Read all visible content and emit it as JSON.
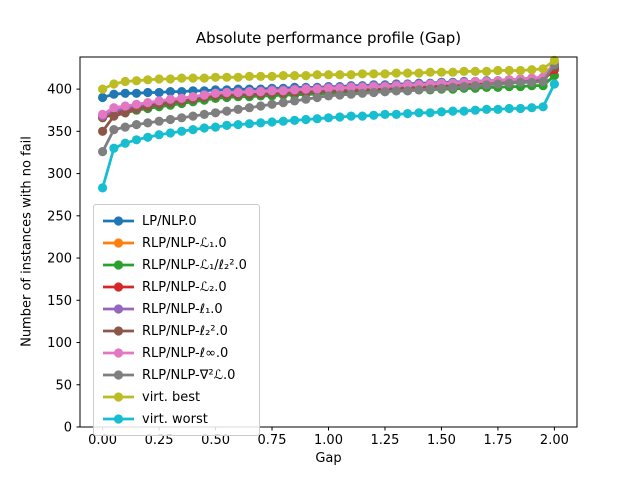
{
  "window": {
    "background": "#ffffff"
  },
  "chart_data": {
    "type": "line",
    "title": "Absolute performance profile (Gap)",
    "xlabel": "Gap",
    "ylabel": "Number of instances with no fail",
    "xlim": [
      -0.1,
      2.1
    ],
    "ylim": [
      0,
      438
    ],
    "xticks": [
      0.0,
      0.25,
      0.5,
      0.75,
      1.0,
      1.25,
      1.5,
      1.75,
      2.0
    ],
    "yticks": [
      0,
      50,
      100,
      150,
      200,
      250,
      300,
      350,
      400
    ],
    "grid": false,
    "legend_position": "inside-left-bottom",
    "marker": "o",
    "text_color": "#000000",
    "spine_color": "#000000",
    "x": [
      0.0,
      0.05,
      0.1,
      0.15,
      0.2,
      0.25,
      0.3,
      0.35,
      0.4,
      0.45,
      0.5,
      0.55,
      0.6,
      0.65,
      0.7,
      0.75,
      0.8,
      0.85,
      0.9,
      0.95,
      1.0,
      1.05,
      1.1,
      1.15,
      1.2,
      1.25,
      1.3,
      1.35,
      1.4,
      1.45,
      1.5,
      1.55,
      1.6,
      1.65,
      1.7,
      1.75,
      1.8,
      1.85,
      1.9,
      1.95,
      2.0
    ],
    "series": [
      {
        "name": "LP/NLP.0",
        "color": "#1f77b4",
        "values": [
          390,
          394,
          395,
          395,
          396,
          396,
          397,
          397,
          398,
          398,
          399,
          399,
          400,
          400,
          400,
          401,
          401,
          402,
          402,
          402,
          403,
          403,
          404,
          404,
          405,
          405,
          406,
          406,
          407,
          407,
          408,
          408,
          409,
          409,
          410,
          410,
          411,
          411,
          411,
          412,
          428
        ]
      },
      {
        "name": "RLP/NLP-ℒ₁.0",
        "color": "#ff7f0e",
        "values": [
          367,
          372,
          375,
          378,
          381,
          383,
          385,
          387,
          389,
          391,
          393,
          394,
          394,
          395,
          395,
          396,
          396,
          397,
          397,
          398,
          398,
          399,
          399,
          400,
          400,
          401,
          401,
          402,
          402,
          403,
          404,
          404,
          405,
          406,
          406,
          407,
          408,
          408,
          409,
          410,
          424
        ]
      },
      {
        "name": "RLP/NLP-ℒ₁/ℓ₂².0",
        "color": "#2ca02c",
        "values": [
          366,
          370,
          372,
          375,
          377,
          379,
          381,
          383,
          385,
          387,
          389,
          390,
          391,
          391,
          392,
          392,
          393,
          393,
          394,
          394,
          395,
          395,
          396,
          396,
          397,
          397,
          398,
          398,
          399,
          399,
          400,
          400,
          401,
          401,
          402,
          402,
          403,
          403,
          404,
          404,
          416
        ]
      },
      {
        "name": "RLP/NLP-ℒ₂.0",
        "color": "#d62728",
        "values": [
          367,
          371,
          374,
          377,
          380,
          382,
          384,
          386,
          388,
          390,
          392,
          393,
          394,
          394,
          395,
          395,
          396,
          396,
          397,
          397,
          398,
          398,
          399,
          399,
          400,
          400,
          401,
          402,
          402,
          403,
          404,
          404,
          405,
          406,
          407,
          408,
          409,
          410,
          410,
          411,
          423
        ]
      },
      {
        "name": "RLP/NLP-ℓ₁.0",
        "color": "#9467bd",
        "values": [
          368,
          374,
          377,
          380,
          383,
          385,
          387,
          389,
          391,
          393,
          395,
          396,
          397,
          397,
          398,
          399,
          399,
          400,
          401,
          401,
          402,
          402,
          403,
          403,
          404,
          404,
          405,
          405,
          406,
          406,
          407,
          407,
          408,
          409,
          409,
          410,
          411,
          411,
          412,
          413,
          427
        ]
      },
      {
        "name": "RLP/NLP-ℓ₂².0",
        "color": "#8c564b",
        "values": [
          350,
          368,
          372,
          376,
          379,
          382,
          384,
          386,
          388,
          390,
          392,
          393,
          393,
          394,
          394,
          395,
          395,
          396,
          396,
          397,
          397,
          398,
          398,
          399,
          400,
          400,
          401,
          402,
          403,
          404,
          405,
          406,
          407,
          408,
          409,
          410,
          411,
          412,
          413,
          414,
          426
        ]
      },
      {
        "name": "RLP/NLP-ℓ∞.0",
        "color": "#e377c2",
        "values": [
          370,
          378,
          380,
          382,
          384,
          386,
          388,
          389,
          391,
          393,
          395,
          396,
          396,
          397,
          397,
          398,
          398,
          399,
          400,
          400,
          401,
          401,
          402,
          402,
          403,
          403,
          404,
          405,
          405,
          406,
          407,
          407,
          408,
          409,
          409,
          410,
          411,
          412,
          413,
          414,
          431
        ]
      },
      {
        "name": "RLP/NLP-∇²ℒ.0",
        "color": "#7f7f7f",
        "values": [
          326,
          352,
          355,
          358,
          360,
          362,
          364,
          366,
          368,
          370,
          372,
          374,
          376,
          378,
          380,
          382,
          384,
          386,
          388,
          390,
          392,
          393,
          394,
          395,
          396,
          397,
          398,
          398,
          399,
          400,
          401,
          402,
          403,
          404,
          405,
          406,
          407,
          408,
          408,
          409,
          429
        ]
      },
      {
        "name": "virt. best",
        "color": "#bcbd22",
        "values": [
          400,
          406,
          409,
          410,
          411,
          412,
          412,
          413,
          413,
          413,
          414,
          414,
          414,
          415,
          415,
          415,
          416,
          416,
          416,
          417,
          417,
          417,
          417,
          418,
          418,
          418,
          419,
          419,
          419,
          420,
          420,
          420,
          421,
          421,
          421,
          422,
          422,
          422,
          423,
          424,
          434
        ]
      },
      {
        "name": "virt. worst",
        "color": "#17becf",
        "values": [
          283,
          330,
          336,
          340,
          343,
          346,
          348,
          350,
          352,
          354,
          355,
          357,
          358,
          359,
          360,
          361,
          362,
          363,
          364,
          365,
          366,
          367,
          368,
          368,
          369,
          370,
          370,
          371,
          372,
          372,
          373,
          374,
          374,
          375,
          376,
          376,
          377,
          377,
          378,
          379,
          406
        ]
      }
    ]
  }
}
